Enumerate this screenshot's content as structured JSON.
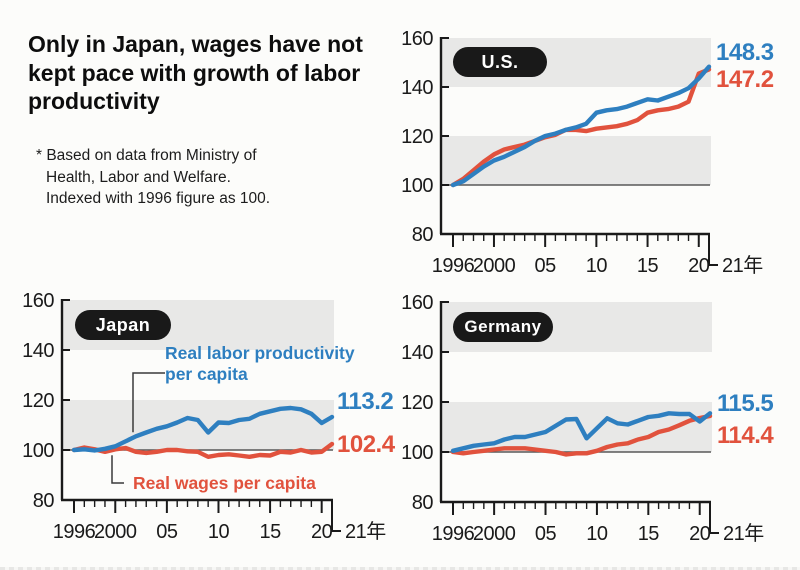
{
  "header": {
    "title_lines": [
      "Only in Japan, wages have not",
      "kept pace with growth of labor",
      "productivity"
    ],
    "footnote_lines": [
      "* Based on data from Ministry of",
      "Health, Labor and Welfare.",
      "Indexed with 1996 figure as 100."
    ]
  },
  "legend": {
    "productivity_lines": [
      "Real labor productivity",
      "per capita"
    ],
    "wages_label": "Real wages per capita"
  },
  "colors": {
    "productivity": "#2e7fc0",
    "wages": "#e1523d",
    "band": "#e8e8e7",
    "axis": "#1a1a1a",
    "baseline": "#595959",
    "leader": "#3a3a3a",
    "pill_bg": "#191919",
    "pill_text": "#ffffff"
  },
  "chart_data": [
    {
      "id": "us",
      "type": "line",
      "title": "U.S.",
      "x": [
        1996,
        1997,
        1998,
        1999,
        2000,
        2001,
        2002,
        2003,
        2004,
        2005,
        2006,
        2007,
        2008,
        2009,
        2010,
        2011,
        2012,
        2013,
        2014,
        2015,
        2016,
        2017,
        2018,
        2019,
        2020,
        2021
      ],
      "ylim": [
        80,
        160
      ],
      "y_ticks": [
        160,
        140,
        120,
        100,
        80
      ],
      "bands": [
        [
          100,
          120
        ],
        [
          140,
          160
        ]
      ],
      "grid": "baseline-100-only",
      "x_tick_labels": [
        {
          "year": 1996,
          "label": "1996"
        },
        {
          "year": 2000,
          "label": "2000"
        },
        {
          "year": 2005,
          "label": "05"
        },
        {
          "year": 2010,
          "label": "10"
        },
        {
          "year": 2015,
          "label": "15"
        },
        {
          "year": 2020,
          "label": "20"
        }
      ],
      "end_axis_label": "21年",
      "series": [
        {
          "name": "Real labor productivity per capita",
          "color_key": "productivity",
          "end_label": "148.3",
          "values": [
            100,
            101.5,
            104.5,
            107.5,
            110,
            111.5,
            113.5,
            115.5,
            118,
            120,
            121,
            122.5,
            123.5,
            125,
            129.5,
            130.5,
            131,
            132,
            133.5,
            135,
            134.5,
            136,
            137.5,
            139.5,
            143.5,
            148.3
          ]
        },
        {
          "name": "Real wages per capita",
          "color_key": "wages",
          "end_label": "147.2",
          "values": [
            100,
            102.5,
            106,
            109.5,
            112.5,
            114.5,
            115.5,
            116.5,
            118,
            119.5,
            120.5,
            122.5,
            122.5,
            122,
            123,
            123.5,
            124,
            125,
            126.5,
            129.5,
            130.5,
            131,
            132,
            134,
            145.5,
            147.2
          ]
        }
      ]
    },
    {
      "id": "japan",
      "type": "line",
      "title": "Japan",
      "x": [
        1996,
        1997,
        1998,
        1999,
        2000,
        2001,
        2002,
        2003,
        2004,
        2005,
        2006,
        2007,
        2008,
        2009,
        2010,
        2011,
        2012,
        2013,
        2014,
        2015,
        2016,
        2017,
        2018,
        2019,
        2020,
        2021
      ],
      "ylim": [
        80,
        160
      ],
      "y_ticks": [
        160,
        140,
        120,
        100,
        80
      ],
      "bands": [
        [
          100,
          120
        ],
        [
          140,
          160
        ]
      ],
      "grid": "baseline-100-only",
      "x_tick_labels": [
        {
          "year": 1996,
          "label": "1996"
        },
        {
          "year": 2000,
          "label": "2000"
        },
        {
          "year": 2005,
          "label": "05"
        },
        {
          "year": 2010,
          "label": "10"
        },
        {
          "year": 2015,
          "label": "15"
        },
        {
          "year": 2020,
          "label": "20"
        }
      ],
      "end_axis_label": "21年",
      "series": [
        {
          "name": "Real labor productivity per capita",
          "color_key": "productivity",
          "end_label": "113.2",
          "values": [
            100,
            100.3,
            99.8,
            100.5,
            101.5,
            103.5,
            105.5,
            107,
            108.5,
            109.5,
            111,
            112.8,
            112,
            107,
            111,
            110.8,
            112,
            112.5,
            114.5,
            115.5,
            116.5,
            116.8,
            116.3,
            114.5,
            110.8,
            113.2
          ]
        },
        {
          "name": "Real wages per capita",
          "color_key": "wages",
          "end_label": "102.4",
          "values": [
            100,
            101,
            100.3,
            99.3,
            100.3,
            100.8,
            99.3,
            98.8,
            99.3,
            100,
            100,
            99.5,
            99.3,
            97.3,
            98,
            98.3,
            97.8,
            97.3,
            98,
            97.8,
            99.3,
            99,
            100,
            99,
            99.3,
            102.4
          ]
        }
      ]
    },
    {
      "id": "germany",
      "type": "line",
      "title": "Germany",
      "x": [
        1996,
        1997,
        1998,
        1999,
        2000,
        2001,
        2002,
        2003,
        2004,
        2005,
        2006,
        2007,
        2008,
        2009,
        2010,
        2011,
        2012,
        2013,
        2014,
        2015,
        2016,
        2017,
        2018,
        2019,
        2020,
        2021
      ],
      "ylim": [
        80,
        160
      ],
      "y_ticks": [
        160,
        140,
        120,
        100,
        80
      ],
      "bands": [
        [
          100,
          120
        ],
        [
          140,
          160
        ]
      ],
      "grid": "baseline-100-only",
      "x_tick_labels": [
        {
          "year": 1996,
          "label": "1996"
        },
        {
          "year": 2000,
          "label": "2000"
        },
        {
          "year": 2005,
          "label": "05"
        },
        {
          "year": 2010,
          "label": "10"
        },
        {
          "year": 2015,
          "label": "15"
        },
        {
          "year": 2020,
          "label": "20"
        }
      ],
      "end_axis_label": "21年",
      "series": [
        {
          "name": "Real labor productivity per capita",
          "color_key": "productivity",
          "end_label": "115.5",
          "values": [
            100.5,
            101.5,
            102.5,
            103,
            103.5,
            105,
            106,
            106,
            107,
            108,
            110.5,
            113,
            113.2,
            105.5,
            109.5,
            113.5,
            111.5,
            111,
            112.5,
            114,
            114.5,
            115.5,
            115.2,
            115.2,
            112.2,
            115.5
          ]
        },
        {
          "name": "Real wages per capita",
          "color_key": "wages",
          "end_label": "114.4",
          "values": [
            100,
            99.5,
            100,
            100.5,
            101,
            101.5,
            101.5,
            101.5,
            101,
            100.5,
            100,
            99,
            99.5,
            99.5,
            100.5,
            102,
            103,
            103.5,
            105,
            106,
            108,
            109,
            110.7,
            112.5,
            113.6,
            114.4
          ]
        }
      ]
    }
  ]
}
